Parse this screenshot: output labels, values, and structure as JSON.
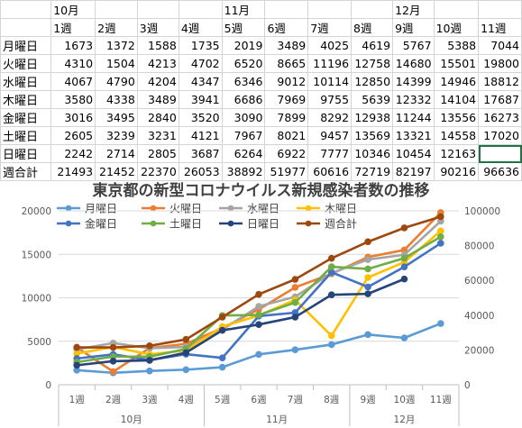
{
  "table": {
    "months": [
      "10月",
      "",
      "",
      "",
      "11月",
      "",
      "",
      "",
      "12月",
      "",
      ""
    ],
    "weeks": [
      "1週",
      "2週",
      "3週",
      "4週",
      "5週",
      "6週",
      "7週",
      "8週",
      "9週",
      "10週",
      "11週"
    ],
    "rows": [
      {
        "label": "月曜日",
        "values": [
          "1673",
          "1372",
          "1588",
          "1735",
          "2019",
          "3489",
          "4025",
          "4619",
          "5767",
          "5388",
          "7044"
        ]
      },
      {
        "label": "火曜日",
        "values": [
          "4310",
          "1504",
          "4213",
          "4702",
          "6520",
          "8665",
          "11196",
          "12758",
          "14680",
          "15501",
          "19800"
        ]
      },
      {
        "label": "水曜日",
        "values": [
          "4067",
          "4790",
          "4204",
          "4347",
          "6346",
          "9012",
          "10114",
          "12850",
          "14399",
          "14946",
          "18812"
        ]
      },
      {
        "label": "木曜日",
        "values": [
          "3580",
          "4338",
          "3489",
          "3941",
          "6686",
          "7969",
          "9755",
          "5639",
          "12332",
          "14104",
          "17687"
        ]
      },
      {
        "label": "金曜日",
        "values": [
          "3016",
          "3495",
          "2840",
          "3520",
          "3090",
          "7899",
          "8292",
          "12938",
          "11244",
          "13556",
          "16273"
        ]
      },
      {
        "label": "土曜日",
        "values": [
          "2605",
          "3239",
          "3231",
          "4121",
          "7967",
          "8021",
          "9457",
          "13569",
          "13321",
          "14558",
          "17020"
        ]
      },
      {
        "label": "日曜日",
        "values": [
          "2242",
          "2714",
          "2805",
          "3687",
          "6264",
          "6922",
          "7777",
          "10346",
          "10454",
          "12163",
          ""
        ]
      },
      {
        "label": "週合計",
        "values": [
          "21493",
          "21452",
          "22370",
          "26053",
          "38892",
          "51977",
          "60616",
          "72719",
          "82197",
          "90216",
          "96636"
        ]
      }
    ]
  },
  "chart_data": {
    "type": "line",
    "title": "東京都の新型コロナウイルス新規感染者数の推移",
    "categories": [
      "1週",
      "2週",
      "3週",
      "4週",
      "5週",
      "6週",
      "7週",
      "8週",
      "9週",
      "10週",
      "11週"
    ],
    "month_groups": [
      {
        "label": "10月",
        "start": 0,
        "end": 3
      },
      {
        "label": "11月",
        "start": 4,
        "end": 7
      },
      {
        "label": "12月",
        "start": 8,
        "end": 10
      }
    ],
    "ylim": [
      0,
      20000
    ],
    "yticks": [
      "0",
      "5000",
      "10000",
      "15000",
      "20000"
    ],
    "y2lim": [
      0,
      100000
    ],
    "y2ticks": [
      "0",
      "20000",
      "40000",
      "60000",
      "80000",
      "100000"
    ],
    "grid": true,
    "legend_position": "top",
    "series": [
      {
        "name": "月曜日",
        "axis": "left",
        "color": "#5b9bd5",
        "values": [
          1673,
          1372,
          1588,
          1735,
          2019,
          3489,
          4025,
          4619,
          5767,
          5388,
          7044
        ]
      },
      {
        "name": "火曜日",
        "axis": "left",
        "color": "#ed7d31",
        "values": [
          4310,
          1504,
          4213,
          4702,
          6520,
          8665,
          11196,
          12758,
          14680,
          15501,
          19800
        ]
      },
      {
        "name": "水曜日",
        "axis": "left",
        "color": "#a5a5a5",
        "values": [
          4067,
          4790,
          4204,
          4347,
          6346,
          9012,
          10114,
          12850,
          14399,
          14946,
          18812
        ]
      },
      {
        "name": "木曜日",
        "axis": "left",
        "color": "#ffc000",
        "values": [
          3580,
          4338,
          3489,
          3941,
          6686,
          7969,
          9755,
          5639,
          12332,
          14104,
          17687
        ]
      },
      {
        "name": "金曜日",
        "axis": "left",
        "color": "#4472c4",
        "values": [
          3016,
          3495,
          2840,
          3520,
          3090,
          7899,
          8292,
          12938,
          11244,
          13556,
          16273
        ]
      },
      {
        "name": "土曜日",
        "axis": "left",
        "color": "#70ad47",
        "values": [
          2605,
          3239,
          3231,
          4121,
          7967,
          8021,
          9457,
          13569,
          13321,
          14558,
          17020
        ]
      },
      {
        "name": "日曜日",
        "axis": "left",
        "color": "#264478",
        "values": [
          2242,
          2714,
          2805,
          3687,
          6264,
          6922,
          7777,
          10346,
          10454,
          12163,
          null
        ]
      },
      {
        "name": "週合計",
        "axis": "right",
        "color": "#9e480e",
        "values": [
          21493,
          21452,
          22370,
          26053,
          38892,
          51977,
          60616,
          72719,
          82197,
          90216,
          96636
        ]
      }
    ]
  }
}
